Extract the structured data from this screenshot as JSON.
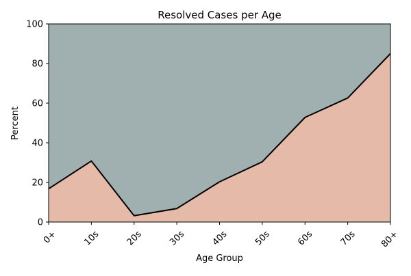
{
  "chart_data": {
    "type": "area",
    "title": "Resolved Cases per Age",
    "xlabel": "Age Group",
    "ylabel": "Percent",
    "categories": [
      "0+",
      "10s",
      "20s",
      "30s",
      "40s",
      "50s",
      "60s",
      "70s",
      "80+"
    ],
    "series": [
      {
        "values": [
          16.8,
          30.8,
          3.2,
          6.8,
          20.3,
          30.4,
          52.8,
          62.6,
          85.0
        ],
        "color": "#e6baa8"
      },
      {
        "values": [
          83.2,
          69.2,
          96.8,
          93.2,
          79.7,
          69.6,
          47.2,
          37.4,
          15.0
        ],
        "color": "#a0afaf"
      }
    ],
    "ylim": [
      0,
      100
    ],
    "yticks": [
      0,
      20,
      40,
      60,
      80,
      100
    ],
    "stacked": true,
    "grid": false,
    "boundary_line_color": "#000000"
  }
}
